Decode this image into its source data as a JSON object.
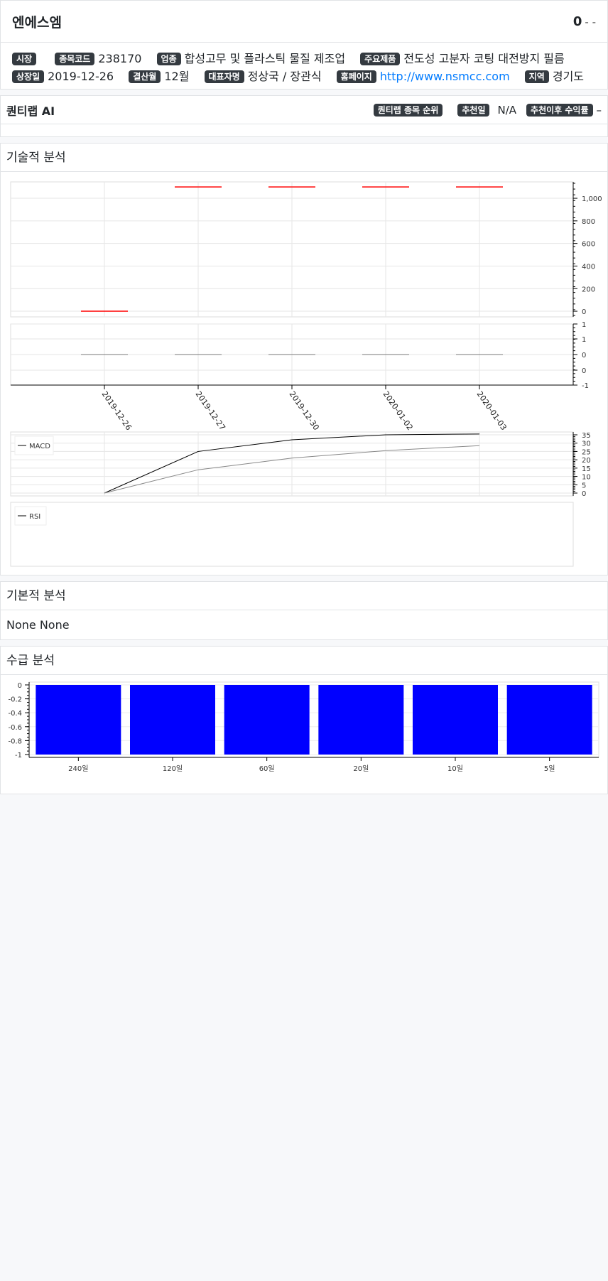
{
  "header": {
    "company_name": "엔에스엠",
    "price": "0",
    "change": "- -"
  },
  "info": {
    "market_label": "시장",
    "market_value": "",
    "code_label": "종목코드",
    "code_value": "238170",
    "industry_label": "업종",
    "industry_value": "합성고무 및 플라스틱 물질 제조업",
    "product_label": "주요제품",
    "product_value": "전도성 고분자 코팅 대전방지 필름",
    "listing_label": "상장일",
    "listing_value": "2019-12-26",
    "fiscal_label": "결산월",
    "fiscal_value": "12월",
    "ceo_label": "대표자명",
    "ceo_value": "정상국 / 장관식",
    "homepage_label": "홈페이지",
    "homepage_value": "http://www.nsmcc.com",
    "region_label": "지역",
    "region_value": "경기도"
  },
  "ai": {
    "title": "퀀티랩 AI",
    "rank_label": "퀀티랩 종목 순위",
    "date_label": "추천일",
    "date_value": "N/A",
    "return_label": "추천이후 수익률",
    "return_value": "–"
  },
  "technical": {
    "title": "기술적 분석"
  },
  "fundamental": {
    "title": "기본적 분석",
    "text": "None None"
  },
  "supply": {
    "title": "수급 분석"
  },
  "colors": {
    "price_line": "#ff0000",
    "macd": "#000000",
    "signal": "#888888",
    "bar": "#0000ff",
    "badge": "#343a40",
    "link": "#007bff"
  },
  "chart_data": [
    {
      "type": "line",
      "dates": [
        "2019-12-26",
        "2019-12-27",
        "2019-12-30",
        "2020-01-02",
        "2020-01-03"
      ],
      "values": [
        0,
        1100,
        1100,
        1100,
        1100
      ],
      "yticks": [
        "0",
        "200",
        "400",
        "600",
        "800",
        "1,000"
      ],
      "ylim": [
        -50,
        1150
      ]
    },
    {
      "type": "bar",
      "dates": [
        "2019-12-26",
        "2019-12-27",
        "2019-12-30",
        "2020-01-02",
        "2020-01-03"
      ],
      "values": [
        0,
        0,
        0,
        0,
        0
      ],
      "yticks": [
        "1",
        "1",
        "0",
        "0",
        "-1"
      ],
      "ylim": [
        -1,
        1
      ]
    },
    {
      "type": "line",
      "legend": [
        "MACD"
      ],
      "series": [
        {
          "name": "MACD",
          "values": [
            0,
            25,
            32,
            35,
            35.5
          ]
        },
        {
          "values": [
            0,
            14,
            21,
            25.5,
            28.5
          ]
        }
      ],
      "yticks": [
        "0",
        "5",
        "10",
        "15",
        "20",
        "25",
        "30",
        "35"
      ],
      "ylim": [
        0,
        35
      ]
    },
    {
      "type": "line",
      "legend": [
        "RSI"
      ],
      "series": []
    },
    {
      "type": "bar",
      "categories": [
        "240일",
        "120일",
        "60일",
        "20일",
        "10일",
        "5일"
      ],
      "values": [
        -1,
        -1,
        -1,
        -1,
        -1,
        -1
      ],
      "yticks": [
        "0",
        "-0.2",
        "-0.4",
        "-0.6",
        "-0.8",
        "-1"
      ],
      "ylim": [
        -1,
        0
      ]
    }
  ]
}
